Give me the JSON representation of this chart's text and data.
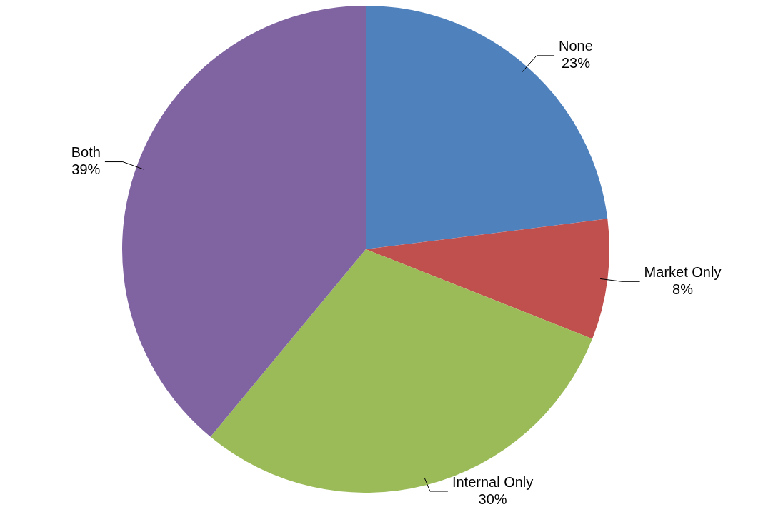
{
  "chart_data": {
    "type": "pie",
    "categories": [
      "None",
      "Market Only",
      "Internal Only",
      "Both"
    ],
    "values": [
      23,
      8,
      30,
      39
    ],
    "colors": [
      "#4f81bd",
      "#c0504d",
      "#9bbb59",
      "#8064a2"
    ],
    "value_labels": [
      "23%",
      "8%",
      "30%",
      "39%"
    ],
    "legend": false
  }
}
